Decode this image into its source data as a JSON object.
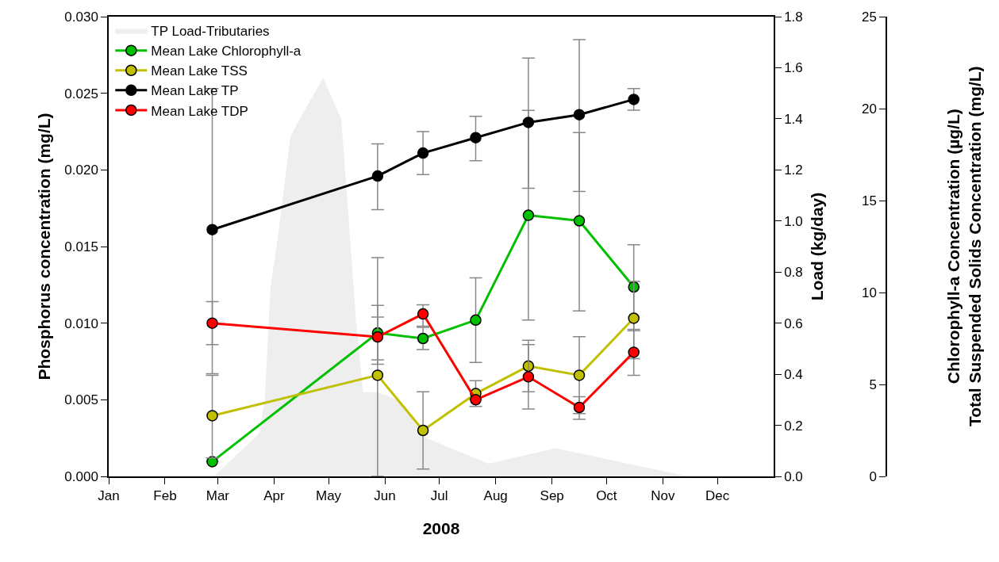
{
  "chart_data": {
    "type": "line",
    "xlabel": "2008",
    "ylabel": "Phosphorus concentration (mg/L)",
    "y2label": "Load (kg/day)",
    "y3label": "Chlorophyll-a Concentration (µg/L)\nTotal Suspended Solids Concentration (mg/L)",
    "xlim": [
      "2008-01-01",
      "2009-01-01"
    ],
    "xticks": [
      {
        "value": "2008-01-01",
        "label": "Jan"
      },
      {
        "value": "2008-02-01",
        "label": "Feb"
      },
      {
        "value": "2008-03-01",
        "label": "Mar"
      },
      {
        "value": "2008-04-01",
        "label": "Apr"
      },
      {
        "value": "2008-05-01",
        "label": "May"
      },
      {
        "value": "2008-06-01",
        "label": "Jun"
      },
      {
        "value": "2008-07-01",
        "label": "Jul"
      },
      {
        "value": "2008-08-01",
        "label": "Aug"
      },
      {
        "value": "2008-09-01",
        "label": "Sep"
      },
      {
        "value": "2008-10-01",
        "label": "Oct"
      },
      {
        "value": "2008-11-01",
        "label": "Nov"
      },
      {
        "value": "2008-12-01",
        "label": "Dec"
      }
    ],
    "ylim": [
      0,
      0.03
    ],
    "yticks": [
      {
        "value": 0,
        "label": "0.000"
      },
      {
        "value": 0.005,
        "label": "0.005"
      },
      {
        "value": 0.01,
        "label": "0.010"
      },
      {
        "value": 0.015,
        "label": "0.015"
      },
      {
        "value": 0.02,
        "label": "0.020"
      },
      {
        "value": 0.025,
        "label": "0.025"
      },
      {
        "value": 0.03,
        "label": "0.030"
      }
    ],
    "y2lim": [
      0,
      1.8
    ],
    "y2ticks": [
      {
        "value": 0,
        "label": "0.0"
      },
      {
        "value": 0.2,
        "label": "0.2"
      },
      {
        "value": 0.4,
        "label": "0.4"
      },
      {
        "value": 0.6,
        "label": "0.6"
      },
      {
        "value": 0.8,
        "label": "0.8"
      },
      {
        "value": 1.0,
        "label": "1.0"
      },
      {
        "value": 1.2,
        "label": "1.2"
      },
      {
        "value": 1.4,
        "label": "1.4"
      },
      {
        "value": 1.6,
        "label": "1.6"
      },
      {
        "value": 1.8,
        "label": "1.8"
      }
    ],
    "y3lim": [
      0,
      25
    ],
    "y3ticks": [
      0,
      5,
      10,
      15,
      20,
      25
    ],
    "legend": "top left",
    "marker": "circle",
    "line_style": "solid",
    "series": [
      {
        "name": "TP Load-Tributaries",
        "type": "area",
        "axis": "y2",
        "marker": "none",
        "color": "#eeeeee",
        "x": [
          "2008-01-01",
          "2008-02-28",
          "2008-03-24",
          "2008-03-27",
          "2008-03-30",
          "2008-04-03",
          "2008-04-10",
          "2008-04-16",
          "2008-04-28",
          "2008-05-08",
          "2008-05-13",
          "2008-05-16",
          "2008-05-20",
          "2008-05-28",
          "2008-06-08",
          "2008-06-24",
          "2008-07-28",
          "2008-09-03",
          "2008-11-15"
        ],
        "values": [
          0,
          0,
          0.17,
          0.31,
          0.74,
          0.93,
          1.33,
          1.41,
          1.56,
          1.4,
          0.92,
          0.62,
          0.33,
          0.33,
          0.3,
          0.15,
          0.05,
          0.11,
          0
        ]
      },
      {
        "name": "Mean Lake Chlorophyll-a",
        "axis": "y3",
        "color": "#00c000",
        "x": [
          "2008-02-27",
          "2008-05-28",
          "2008-06-22",
          "2008-07-21",
          "2008-08-19",
          "2008-09-16",
          "2008-10-16"
        ],
        "values": [
          0.8,
          7.8,
          7.5,
          8.5,
          14.2,
          13.9,
          10.3
        ],
        "errors": [
          null,
          [
            6.1,
            9.3
          ],
          [
            6.9,
            8.1
          ],
          [
            6.2,
            10.8
          ],
          [
            8.5,
            19.9
          ],
          [
            9.0,
            18.7
          ],
          [
            8.0,
            12.6
          ]
        ]
      },
      {
        "name": "Mean Lake TSS",
        "axis": "y3",
        "color": "#c0c000",
        "x": [
          "2008-02-27",
          "2008-05-28",
          "2008-06-22",
          "2008-07-21",
          "2008-08-19",
          "2008-09-16",
          "2008-10-16"
        ],
        "values": [
          3.3,
          5.5,
          2.5,
          4.5,
          6.0,
          5.5,
          8.6
        ],
        "errors": [
          [
            1.0,
            5.5
          ],
          [
            0,
            11.9
          ],
          [
            0.4,
            4.6
          ],
          [
            3.8,
            5.2
          ],
          [
            4.6,
            7.4
          ],
          [
            3.1,
            7.6
          ],
          [
            6.4,
            10.6
          ]
        ]
      },
      {
        "name": "Mean Lake TP",
        "axis": "y",
        "color": "#000000",
        "x": [
          "2008-02-27",
          "2008-05-28",
          "2008-06-22",
          "2008-07-21",
          "2008-08-19",
          "2008-09-16",
          "2008-10-16"
        ],
        "values": [
          0.0161,
          0.0196,
          0.0211,
          0.0221,
          0.0231,
          0.0236,
          0.0246
        ],
        "errors": [
          [
            0.0067,
            0.0253
          ],
          [
            0.0174,
            0.0217
          ],
          [
            0.0197,
            0.0225
          ],
          [
            0.0206,
            0.0235
          ],
          [
            0.0188,
            0.0273
          ],
          [
            0.0186,
            0.0285
          ],
          [
            0.0239,
            0.0253
          ]
        ]
      },
      {
        "name": "Mean Lake TDP",
        "axis": "y",
        "color": "#ff0000",
        "x": [
          "2008-02-27",
          "2008-05-28",
          "2008-06-22",
          "2008-07-21",
          "2008-08-19",
          "2008-09-16",
          "2008-10-16"
        ],
        "values": [
          0.01,
          0.0091,
          0.0106,
          0.005,
          0.0065,
          0.0045,
          0.0081
        ],
        "errors": [
          [
            0.0086,
            0.0114
          ],
          [
            0.0076,
            0.0104
          ],
          [
            0.0098,
            0.0112
          ],
          null,
          [
            0.0044,
            0.0086
          ],
          [
            0.0041,
            0.0052
          ],
          [
            0.0066,
            0.0095
          ]
        ]
      }
    ]
  }
}
